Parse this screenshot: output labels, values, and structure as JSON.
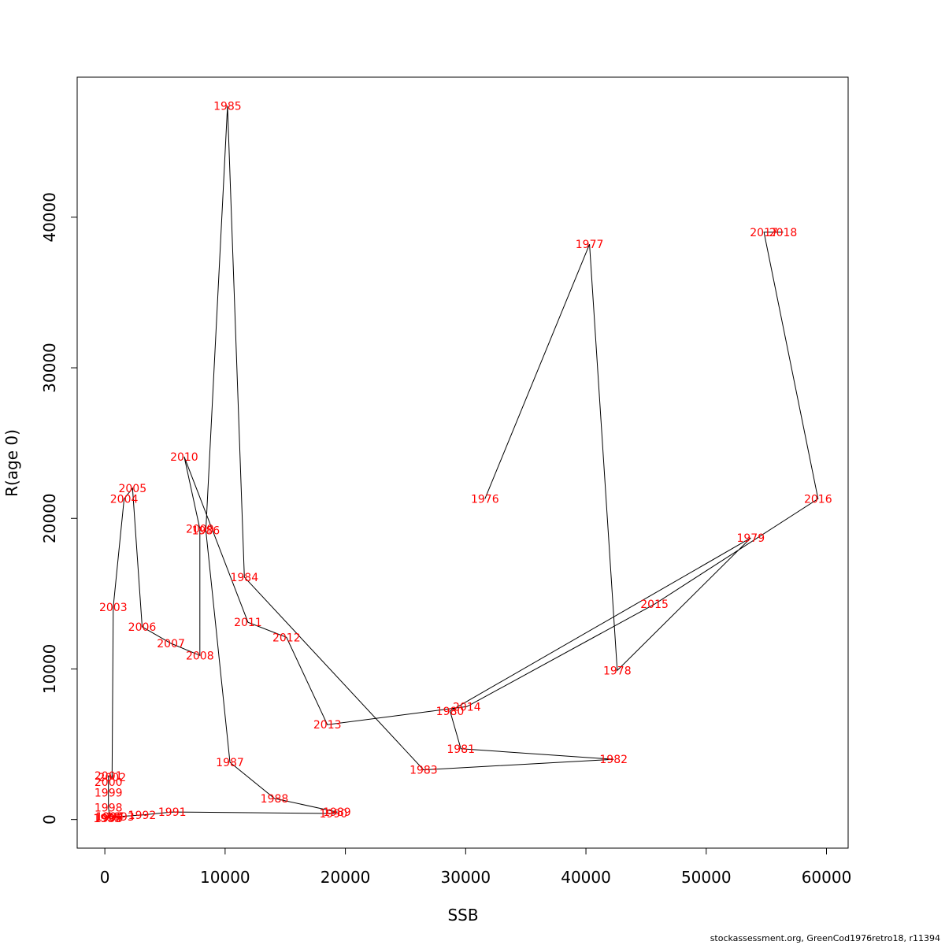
{
  "footer_text": "stockassessment.org, GreenCod1976retro18, r11394",
  "chart_data": {
    "type": "line",
    "title": "",
    "xlabel": "SSB",
    "ylabel": "R(age 0)",
    "xlim": [
      -2300,
      61800
    ],
    "ylim": [
      -1900,
      49300
    ],
    "xticks": [
      0,
      10000,
      20000,
      30000,
      40000,
      50000,
      60000
    ],
    "xtick_labels": [
      "0",
      "10000",
      "20000",
      "30000",
      "40000",
      "50000",
      "60000"
    ],
    "yticks": [
      0,
      10000,
      20000,
      30000,
      40000
    ],
    "ytick_labels": [
      "0",
      "10000",
      "20000",
      "30000",
      "40000"
    ],
    "grid": false,
    "line_color": "#000000",
    "label_color": "#ff0000",
    "points": [
      {
        "year": "1976",
        "x": 31600,
        "y": 21300
      },
      {
        "year": "1977",
        "x": 40300,
        "y": 38200
      },
      {
        "year": "1978",
        "x": 42600,
        "y": 9900
      },
      {
        "year": "1979",
        "x": 53700,
        "y": 18700
      },
      {
        "year": "1980",
        "x": 28700,
        "y": 7200
      },
      {
        "year": "1981",
        "x": 29600,
        "y": 4700
      },
      {
        "year": "1982",
        "x": 42300,
        "y": 4000
      },
      {
        "year": "1983",
        "x": 26500,
        "y": 3300
      },
      {
        "year": "1984",
        "x": 11600,
        "y": 16100
      },
      {
        "year": "1985",
        "x": 10200,
        "y": 47400
      },
      {
        "year": "1986",
        "x": 8400,
        "y": 19200
      },
      {
        "year": "1987",
        "x": 10400,
        "y": 3800
      },
      {
        "year": "1988",
        "x": 14100,
        "y": 1400
      },
      {
        "year": "1989",
        "x": 19300,
        "y": 500
      },
      {
        "year": "1990",
        "x": 19000,
        "y": 400
      },
      {
        "year": "1991",
        "x": 5600,
        "y": 500
      },
      {
        "year": "1992",
        "x": 3100,
        "y": 300
      },
      {
        "year": "1993",
        "x": 1300,
        "y": 200
      },
      {
        "year": "1994",
        "x": 400,
        "y": 200
      },
      {
        "year": "1995",
        "x": 200,
        "y": 100
      },
      {
        "year": "1996",
        "x": 300,
        "y": 100
      },
      {
        "year": "1997",
        "x": 400,
        "y": 200
      },
      {
        "year": "1998",
        "x": 300,
        "y": 800
      },
      {
        "year": "1999",
        "x": 300,
        "y": 1800
      },
      {
        "year": "2000",
        "x": 300,
        "y": 2500
      },
      {
        "year": "2001",
        "x": 300,
        "y": 2900
      },
      {
        "year": "2002",
        "x": 600,
        "y": 2800
      },
      {
        "year": "2003",
        "x": 700,
        "y": 14100
      },
      {
        "year": "2004",
        "x": 1600,
        "y": 21300
      },
      {
        "year": "2005",
        "x": 2300,
        "y": 22000
      },
      {
        "year": "2006",
        "x": 3100,
        "y": 12800
      },
      {
        "year": "2007",
        "x": 5500,
        "y": 11700
      },
      {
        "year": "2008",
        "x": 7900,
        "y": 10900
      },
      {
        "year": "2009",
        "x": 7900,
        "y": 19300
      },
      {
        "year": "2010",
        "x": 6600,
        "y": 24100
      },
      {
        "year": "2011",
        "x": 11900,
        "y": 13100
      },
      {
        "year": "2012",
        "x": 15100,
        "y": 12100
      },
      {
        "year": "2013",
        "x": 18500,
        "y": 6300
      },
      {
        "year": "2014",
        "x": 30100,
        "y": 7500
      },
      {
        "year": "2015",
        "x": 45700,
        "y": 14300
      },
      {
        "year": "2016",
        "x": 59300,
        "y": 21300
      },
      {
        "year": "2017",
        "x": 54800,
        "y": 39000
      },
      {
        "year": "2018",
        "x": 56400,
        "y": 39000
      }
    ]
  }
}
